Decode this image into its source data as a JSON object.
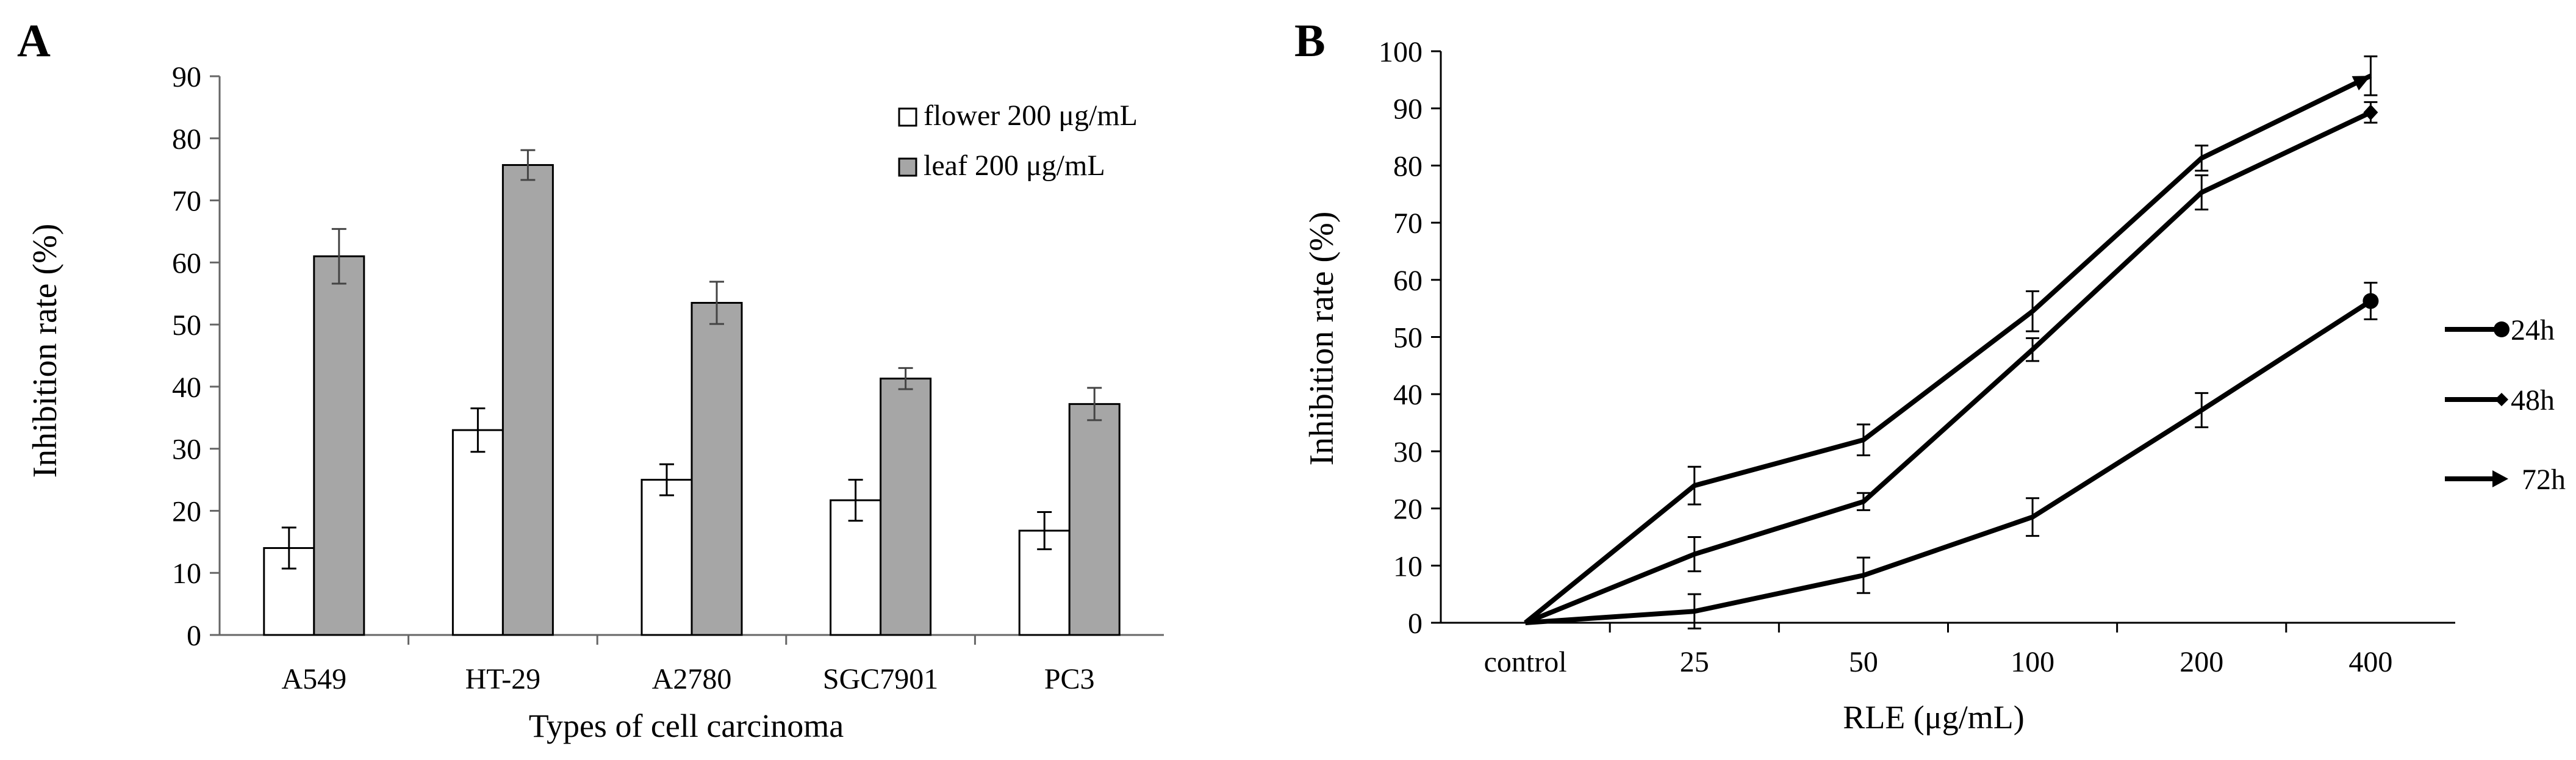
{
  "chart_data": [
    {
      "panel_label": "A",
      "type": "bar",
      "title": "",
      "xlabel": "Types of cell carcinoma",
      "ylabel": "Inhibition rate (%)",
      "ylim": [
        0,
        90
      ],
      "yticks": [
        0,
        10,
        20,
        30,
        40,
        50,
        60,
        70,
        80,
        90
      ],
      "grid": false,
      "legend_position": "top-right",
      "categories": [
        "A549",
        "HT-29",
        "A2780",
        "SGC7901",
        "PC3"
      ],
      "series": [
        {
          "name": "flower 200 μg/mL",
          "color": "#ffffff",
          "values": [
            14,
            33,
            25,
            21.7,
            16.8
          ],
          "errors": [
            3.3,
            3.5,
            2.5,
            3.3,
            3
          ]
        },
        {
          "name": "leaf 200 μg/mL",
          "color": "#a6a6a6",
          "values": [
            61,
            75.7,
            53.5,
            41.3,
            37.2
          ],
          "errors": [
            4.4,
            2.4,
            3.4,
            1.7,
            2.6
          ]
        }
      ]
    },
    {
      "panel_label": "B",
      "type": "line",
      "title": "",
      "xlabel": "RLE (μg/mL)",
      "ylabel": "Inhibition rate (%)",
      "ylim": [
        0,
        100
      ],
      "yticks": [
        0,
        10,
        20,
        30,
        40,
        50,
        60,
        70,
        80,
        90,
        100
      ],
      "grid": false,
      "legend_position": "right",
      "categories": [
        "control",
        "25",
        "50",
        "100",
        "200",
        "400"
      ],
      "series": [
        {
          "name": "24h",
          "marker": "circle",
          "values": [
            0,
            2,
            8.3,
            18.5,
            37.2,
            56.3
          ],
          "errors": [
            0,
            3,
            3.1,
            3.3,
            3,
            3.2
          ]
        },
        {
          "name": "48h",
          "marker": "diamond",
          "values": [
            0,
            12,
            21.2,
            47.8,
            75.3,
            89.3
          ],
          "errors": [
            0,
            3,
            1.5,
            2,
            3,
            1.8
          ]
        },
        {
          "name": "72h",
          "marker": "arrow",
          "values": [
            0,
            24,
            32,
            54.5,
            81.3,
            95.7
          ],
          "errors": [
            0,
            3.3,
            2.7,
            3.5,
            2.2,
            3.4
          ]
        }
      ]
    }
  ]
}
